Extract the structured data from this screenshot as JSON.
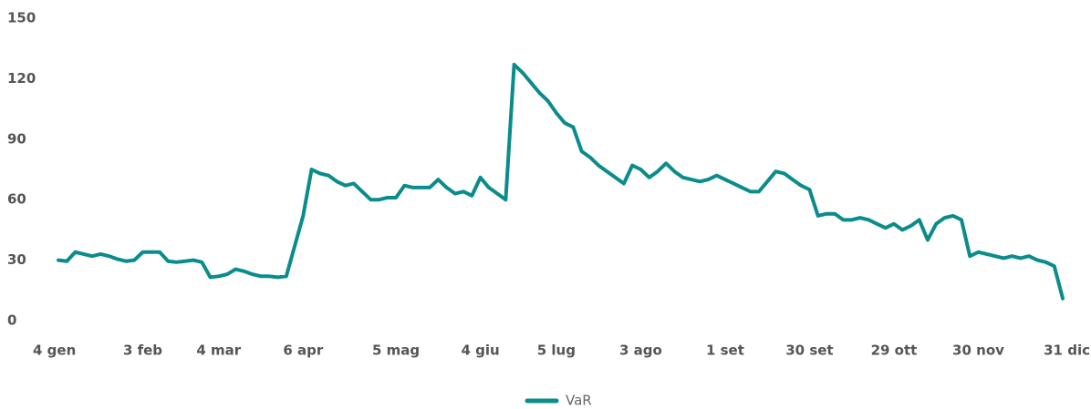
{
  "chart_data": {
    "type": "line",
    "categories": [
      "4 gen",
      null,
      null,
      null,
      null,
      null,
      null,
      null,
      null,
      null,
      "3 feb",
      null,
      null,
      null,
      null,
      null,
      null,
      null,
      null,
      "4 mar",
      null,
      null,
      null,
      null,
      null,
      null,
      null,
      null,
      null,
      "6 apr",
      null,
      null,
      null,
      null,
      null,
      null,
      null,
      null,
      null,
      null,
      "5 mag",
      null,
      null,
      null,
      null,
      null,
      null,
      null,
      null,
      null,
      "4 giu",
      null,
      null,
      null,
      null,
      null,
      null,
      null,
      null,
      "5 lug",
      null,
      null,
      null,
      null,
      null,
      null,
      null,
      null,
      null,
      "3 ago",
      null,
      null,
      null,
      null,
      null,
      null,
      null,
      null,
      null,
      "1 set",
      null,
      null,
      null,
      null,
      null,
      null,
      null,
      null,
      null,
      "30 set",
      null,
      null,
      null,
      null,
      null,
      null,
      null,
      null,
      null,
      "29 ott",
      null,
      null,
      null,
      null,
      null,
      null,
      null,
      null,
      null,
      "30 nov",
      null,
      null,
      null,
      null,
      null,
      null,
      null,
      null,
      null,
      "31 dic"
    ],
    "series": [
      {
        "name": "VaR",
        "color": "#0b8c8c",
        "values": [
          30,
          29.5,
          34,
          33,
          32,
          33,
          32,
          30.5,
          29.5,
          30,
          34,
          34,
          34,
          29.5,
          29,
          29.5,
          30,
          29,
          21.5,
          22,
          23,
          25.5,
          24.5,
          23,
          22,
          22,
          21.5,
          22,
          37,
          52,
          75,
          73,
          72,
          69,
          67,
          68,
          64,
          60,
          60,
          61,
          61,
          67,
          66,
          66,
          66,
          70,
          66,
          63,
          64,
          62,
          71,
          66,
          63,
          60,
          127,
          123,
          118,
          113,
          109,
          103,
          98,
          96,
          84,
          81,
          77,
          74,
          71,
          68,
          77,
          75,
          71,
          74,
          78,
          74,
          71,
          70,
          69,
          70,
          72,
          70,
          68,
          66,
          64,
          64,
          69,
          74,
          73,
          70,
          67,
          65,
          52,
          53,
          53,
          50,
          50,
          51,
          50,
          48,
          46,
          48,
          45,
          47,
          50,
          40,
          48,
          51,
          52,
          50,
          32,
          34,
          33,
          32,
          31,
          32,
          31,
          32,
          30,
          29,
          27,
          11
        ]
      }
    ],
    "ylim": [
      0,
      150
    ],
    "yticks": [
      0,
      30,
      60,
      90,
      120,
      150
    ],
    "grid": false,
    "legend": "bottom"
  }
}
